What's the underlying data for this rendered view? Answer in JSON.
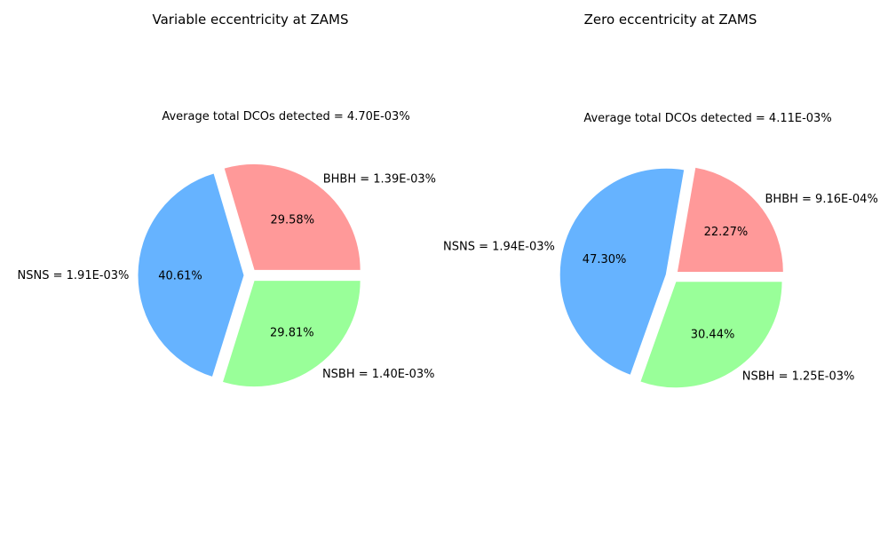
{
  "chart_data": [
    {
      "type": "pie",
      "title": "Variable eccentricity at ZAMS",
      "subtitle": "Average total DCOs detected = 4.70E-03%",
      "slices": [
        {
          "category": "BHBH",
          "label": "BHBH = 1.39E-03%",
          "value": 29.58,
          "pct_label": "29.58%",
          "color": "#ff9999"
        },
        {
          "category": "NSNS",
          "label": "NSNS = 1.91E-03%",
          "value": 40.61,
          "pct_label": "40.61%",
          "color": "#66b3ff"
        },
        {
          "category": "NSBH",
          "label": "NSBH = 1.40E-03%",
          "value": 29.81,
          "pct_label": "29.81%",
          "color": "#99ff99"
        }
      ]
    },
    {
      "type": "pie",
      "title": "Zero eccentricity at ZAMS",
      "subtitle": "Average total DCOs detected = 4.11E-03%",
      "slices": [
        {
          "category": "BHBH",
          "label": "BHBH = 9.16E-04%",
          "value": 22.27,
          "pct_label": "22.27%",
          "color": "#ff9999"
        },
        {
          "category": "NSNS",
          "label": "NSNS = 1.94E-03%",
          "value": 47.3,
          "pct_label": "47.30%",
          "color": "#66b3ff"
        },
        {
          "category": "NSBH",
          "label": "NSBH = 1.25E-03%",
          "value": 30.44,
          "pct_label": "30.44%",
          "color": "#99ff99"
        }
      ]
    }
  ]
}
